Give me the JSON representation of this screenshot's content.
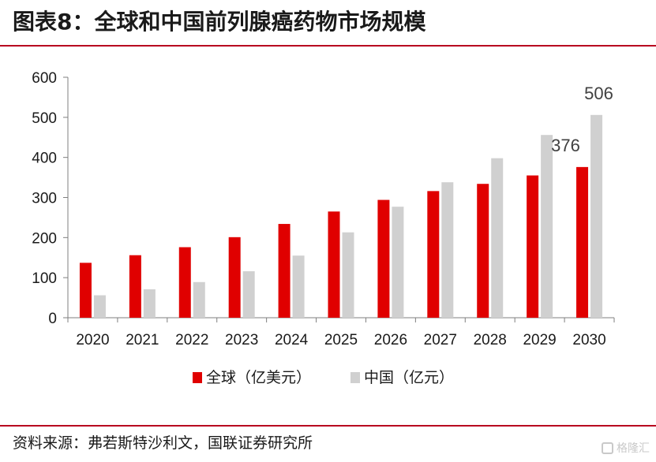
{
  "header": {
    "title": "图表8：全球和中国前列腺癌药物市场规模"
  },
  "footer": {
    "source": "资料来源：弗若斯特沙利文，国联证券研究所",
    "watermark": "格隆汇"
  },
  "chart_data": {
    "type": "bar",
    "title": "",
    "xlabel": "",
    "ylabel": "",
    "ylim": [
      0,
      600
    ],
    "yticks": [
      "0",
      "100",
      "200",
      "300",
      "400",
      "500",
      "600"
    ],
    "categories": [
      "2020",
      "2021",
      "2022",
      "2023",
      "2024",
      "2025",
      "2026",
      "2027",
      "2028",
      "2029",
      "2030"
    ],
    "series": [
      {
        "name": "全球（亿美元）",
        "color": "#e00000",
        "values": [
          137,
          156,
          176,
          201,
          234,
          265,
          294,
          316,
          334,
          355,
          376
        ]
      },
      {
        "name": "中国（亿元）",
        "color": "#d0d0d0",
        "values": [
          56,
          71,
          89,
          116,
          155,
          213,
          277,
          338,
          398,
          456,
          506
        ]
      }
    ],
    "data_labels": [
      {
        "series": 0,
        "index": 10,
        "text": "376"
      },
      {
        "series": 1,
        "index": 10,
        "text": "506"
      }
    ],
    "grid": false,
    "legend": "bottom"
  }
}
